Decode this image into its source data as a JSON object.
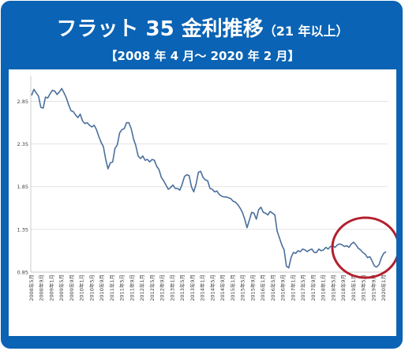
{
  "title": {
    "main": "フラット 35 金利推移",
    "qualifier": "（21 年以上）",
    "range": "【2008 年 4 月～ 2020 年 2 月】"
  },
  "colors": {
    "frame": "#0a63b4",
    "line": "#4a6f9c",
    "highlight_circle": "#b3202d"
  },
  "chart_data": {
    "type": "line",
    "title": "",
    "xlabel": "",
    "ylabel": "",
    "ylim": [
      0.85,
      3.15
    ],
    "yticks": [
      0.85,
      1.35,
      1.85,
      2.35,
      2.85
    ],
    "ytick_labels": [
      "0.85",
      "1.35",
      "1.85",
      "2.35",
      "2.85"
    ],
    "grid": true,
    "legend": "none",
    "xtick_labels": [
      "2008年5月",
      "2008年9月",
      "2009年1月",
      "2009年5月",
      "2009年9月",
      "2010年1月",
      "2010年5月",
      "2010年9月",
      "2011年1月",
      "2011年5月",
      "2011年9月",
      "2012年1月",
      "2012年5月",
      "2012年9月",
      "2013年1月",
      "2013年5月",
      "2013年9月",
      "2014年1月",
      "2014年5月",
      "2014年9月",
      "2015年1月",
      "2015年5月",
      "2015年9月",
      "2016年1月",
      "2016年5月",
      "2016年9月",
      "2017年1月",
      "2017年5月",
      "2017年9月",
      "2018年1月",
      "2018年5月",
      "2018年9月",
      "2019年1月",
      "2019年5月",
      "2019年9月",
      "2020年1月"
    ],
    "series": [
      {
        "values": [
          2.92,
          2.99,
          2.95,
          2.91,
          2.78,
          2.77,
          2.9,
          2.89,
          2.94,
          2.98,
          2.97,
          2.93,
          2.96,
          3.0,
          2.95,
          2.89,
          2.81,
          2.74,
          2.73,
          2.69,
          2.66,
          2.7,
          2.62,
          2.59,
          2.6,
          2.57,
          2.55,
          2.57,
          2.52,
          2.44,
          2.37,
          2.32,
          2.17,
          2.06,
          2.13,
          2.14,
          2.3,
          2.34,
          2.48,
          2.52,
          2.53,
          2.6,
          2.6,
          2.53,
          2.41,
          2.33,
          2.21,
          2.18,
          2.21,
          2.16,
          2.17,
          2.14,
          2.17,
          2.16,
          2.09,
          2.05,
          1.96,
          1.92,
          1.87,
          1.82,
          1.84,
          1.87,
          1.83,
          1.83,
          1.81,
          1.88,
          1.97,
          1.99,
          1.98,
          1.85,
          1.79,
          1.88,
          2.02,
          2.03,
          1.96,
          1.93,
          1.92,
          1.83,
          1.82,
          1.79,
          1.8,
          1.76,
          1.74,
          1.73,
          1.73,
          1.72,
          1.71,
          1.68,
          1.67,
          1.64,
          1.6,
          1.55,
          1.47,
          1.37,
          1.46,
          1.55,
          1.54,
          1.47,
          1.58,
          1.61,
          1.55,
          1.54,
          1.52,
          1.56,
          1.54,
          1.52,
          1.33,
          1.25,
          1.17,
          1.11,
          0.92,
          0.9,
          1.02,
          1.08,
          1.07,
          1.1,
          1.09,
          1.12,
          1.11,
          1.09,
          1.11,
          1.12,
          1.08,
          1.08,
          1.12,
          1.1,
          1.11,
          1.14,
          1.12,
          1.15,
          1.16,
          1.14,
          1.17,
          1.18,
          1.17,
          1.15,
          1.16,
          1.14,
          1.18,
          1.2,
          1.17,
          1.13,
          1.11,
          1.08,
          1.06,
          1.02,
          1.03,
          0.98,
          0.92,
          0.91,
          0.94,
          1.02,
          1.07,
          1.09
        ]
      }
    ]
  }
}
